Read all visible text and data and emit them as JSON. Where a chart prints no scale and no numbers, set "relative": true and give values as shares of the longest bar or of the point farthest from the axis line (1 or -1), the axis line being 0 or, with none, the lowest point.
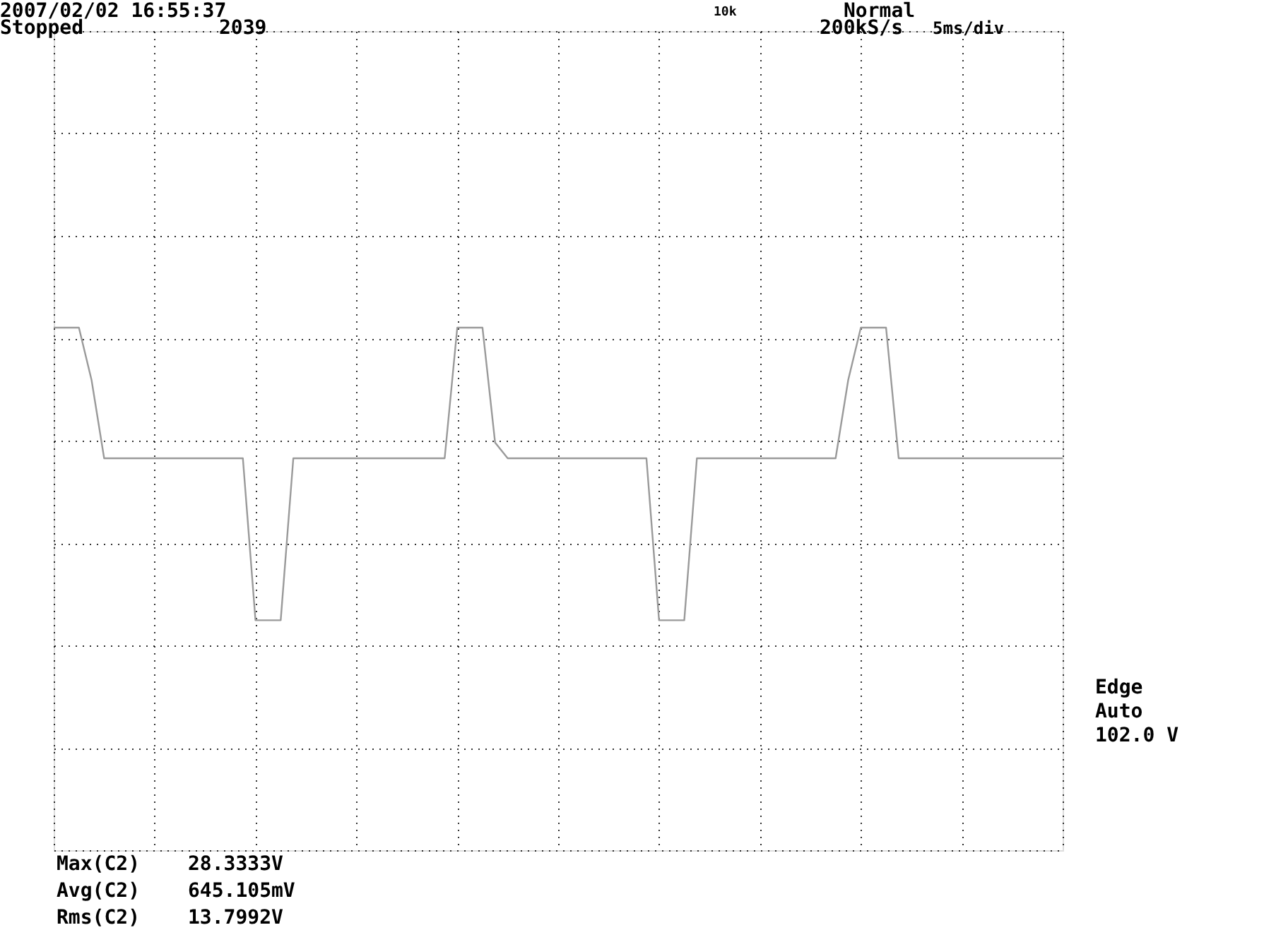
{
  "chart_data": {
    "type": "line",
    "relative": true,
    "grid": true,
    "tick_labels": false,
    "legend": false,
    "marker": "none",
    "line_style": "solid",
    "categories": [
      null,
      null,
      null,
      null,
      null,
      null,
      null,
      null,
      null,
      null,
      null,
      null,
      null,
      null,
      null,
      null,
      null,
      null,
      null,
      null,
      null,
      null,
      null,
      null,
      null,
      null,
      null,
      null,
      null,
      null,
      null,
      null,
      null,
      null,
      null,
      null,
      null,
      null,
      null,
      null,
      null,
      null,
      null,
      null,
      null,
      null,
      null,
      null,
      null,
      null,
      null,
      null,
      null,
      null,
      null,
      null,
      null,
      null,
      null,
      null,
      null,
      null,
      null,
      null,
      null,
      null,
      null,
      null,
      null,
      null,
      null,
      null,
      null,
      null,
      null,
      null,
      null,
      null,
      null,
      null,
      null
    ],
    "series": [
      {
        "color": "#9a9a9a",
        "values": [
          1,
          1,
          1,
          0.9,
          0.75,
          0.75,
          0.75,
          0.75,
          0.75,
          0.75,
          0.75,
          0.75,
          0.75,
          0.75,
          0.75,
          0.75,
          0.44,
          0.44,
          0.44,
          0.75,
          0.75,
          0.75,
          0.75,
          0.75,
          0.75,
          0.75,
          0.75,
          0.75,
          0.75,
          0.75,
          0.75,
          0.75,
          1,
          1,
          1,
          0.78,
          0.75,
          0.75,
          0.75,
          0.75,
          0.75,
          0.75,
          0.75,
          0.75,
          0.75,
          0.75,
          0.75,
          0.75,
          0.44,
          0.44,
          0.44,
          0.75,
          0.75,
          0.75,
          0.75,
          0.75,
          0.75,
          0.75,
          0.75,
          0.75,
          0.75,
          0.75,
          0.75,
          0.9,
          1,
          1,
          1,
          0.75,
          0.75,
          0.75,
          0.75,
          0.75,
          0.75,
          0.75,
          0.75,
          0.75,
          0.75,
          0.75,
          0.75,
          0.75,
          0.75
        ]
      }
    ],
    "annotations": [
      "2007/02/02 16:55:37",
      "Stopped",
      "2039",
      "Normal",
      "200kS/s",
      "5ms/div",
      "10k",
      "Edge",
      "Auto",
      "102.0 V",
      "Max(C2)",
      "28.3333V",
      "Avg(C2)",
      "645.105mV",
      "Rms(C2)",
      "13.7992V"
    ]
  }
}
